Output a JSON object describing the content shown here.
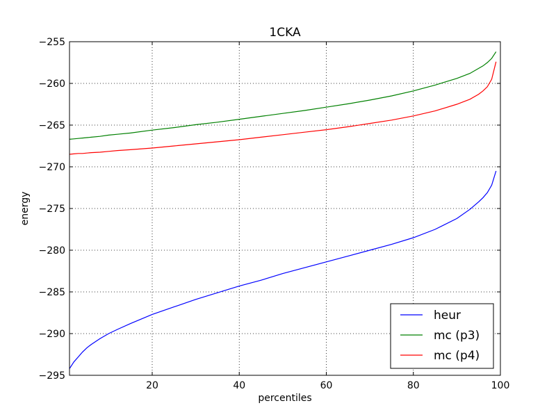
{
  "chart_data": {
    "type": "line",
    "title": "1CKA",
    "xlabel": "percentiles",
    "ylabel": "energy",
    "xlim": [
      1,
      100
    ],
    "ylim": [
      -295,
      -255
    ],
    "xticks": [
      20,
      40,
      60,
      80,
      100
    ],
    "yticks": [
      -295,
      -290,
      -285,
      -280,
      -275,
      -270,
      -265,
      -260,
      -255
    ],
    "xtick_labels": [
      "20",
      "40",
      "60",
      "80",
      "100"
    ],
    "ytick_labels": [
      "−295",
      "−290",
      "−285",
      "−280",
      "−275",
      "−270",
      "−265",
      "−260",
      "−255"
    ],
    "grid": true,
    "legend_position": "lower-right",
    "x": [
      1,
      2,
      3,
      4,
      5,
      6,
      8,
      10,
      12,
      15,
      20,
      25,
      30,
      35,
      40,
      45,
      50,
      55,
      60,
      65,
      70,
      75,
      80,
      85,
      90,
      93,
      95,
      96,
      97,
      98,
      99
    ],
    "series": [
      {
        "name": "heur",
        "color": "#0000ff",
        "values": [
          -294.2,
          -293.4,
          -292.8,
          -292.2,
          -291.7,
          -291.3,
          -290.6,
          -290.0,
          -289.5,
          -288.8,
          -287.7,
          -286.8,
          -285.9,
          -285.1,
          -284.3,
          -283.6,
          -282.8,
          -282.1,
          -281.4,
          -280.7,
          -280.0,
          -279.3,
          -278.5,
          -277.5,
          -276.2,
          -275.1,
          -274.2,
          -273.7,
          -273.1,
          -272.2,
          -270.5
        ]
      },
      {
        "name": "mc (p3)",
        "color": "#008000",
        "values": [
          -266.7,
          -266.65,
          -266.6,
          -266.55,
          -266.5,
          -266.45,
          -266.35,
          -266.2,
          -266.1,
          -265.95,
          -265.6,
          -265.3,
          -264.95,
          -264.65,
          -264.3,
          -263.95,
          -263.6,
          -263.25,
          -262.85,
          -262.45,
          -262.0,
          -261.5,
          -260.9,
          -260.2,
          -259.4,
          -258.8,
          -258.2,
          -257.9,
          -257.5,
          -257.0,
          -256.2
        ]
      },
      {
        "name": "mc (p4)",
        "color": "#ff0000",
        "values": [
          -268.5,
          -268.45,
          -268.4,
          -268.4,
          -268.35,
          -268.3,
          -268.25,
          -268.15,
          -268.05,
          -267.95,
          -267.75,
          -267.5,
          -267.25,
          -267.0,
          -266.75,
          -266.45,
          -266.15,
          -265.85,
          -265.55,
          -265.2,
          -264.8,
          -264.4,
          -263.9,
          -263.3,
          -262.5,
          -261.9,
          -261.3,
          -260.9,
          -260.4,
          -259.5,
          -257.4
        ]
      }
    ]
  }
}
